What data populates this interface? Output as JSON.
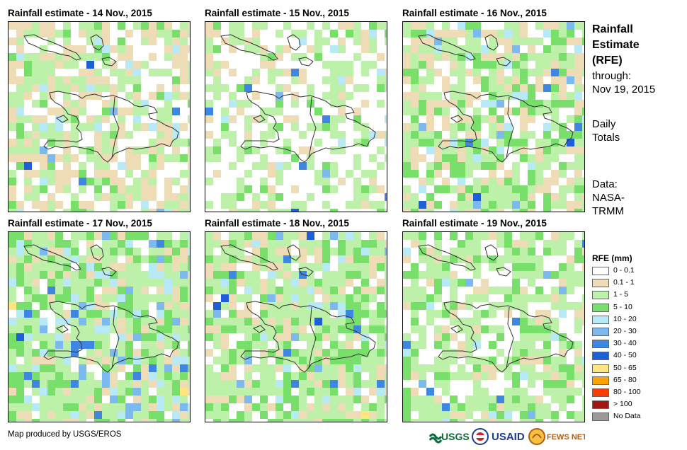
{
  "panels": [
    {
      "title": "Rainfall estimate - 14 Nov., 2015",
      "seed": 14,
      "probs": [
        0.3,
        0.3,
        0.28,
        0.08,
        0.04
      ]
    },
    {
      "title": "Rainfall estimate - 15 Nov., 2015",
      "seed": 15,
      "probs": [
        0.45,
        0.1,
        0.35,
        0.06,
        0.04
      ]
    },
    {
      "title": "Rainfall estimate - 16 Nov., 2015",
      "seed": 16,
      "probs": [
        0.22,
        0.22,
        0.3,
        0.18,
        0.08
      ]
    },
    {
      "title": "Rainfall estimate - 17 Nov., 2015",
      "seed": 17,
      "probs": [
        0.1,
        0.15,
        0.35,
        0.22,
        0.18
      ]
    },
    {
      "title": "Rainfall estimate - 18 Nov., 2015",
      "seed": 18,
      "probs": [
        0.15,
        0.15,
        0.4,
        0.22,
        0.08
      ]
    },
    {
      "title": "Rainfall estimate - 19 Nov., 2015",
      "seed": 19,
      "probs": [
        0.3,
        0.12,
        0.4,
        0.14,
        0.04
      ]
    }
  ],
  "side": {
    "title_line1": "Rainfall",
    "title_line2": "Estimate",
    "title_line3": "(RFE)",
    "through_line1": "through:",
    "through_line2": "Nov 19, 2015",
    "daily_line1": "Daily",
    "daily_line2": "Totals",
    "data_line1": "Data:",
    "data_line2": "NASA-",
    "data_line3": "TRMM"
  },
  "legend": {
    "title": "RFE (mm)",
    "items": [
      {
        "label": "0 - 0.1",
        "color": "#ffffff"
      },
      {
        "label": "0.1 - 1",
        "color": "#eedcb6"
      },
      {
        "label": "1 - 5",
        "color": "#bdf0a8"
      },
      {
        "label": "5 - 10",
        "color": "#78e06a"
      },
      {
        "label": "10 - 20",
        "color": "#b7e9f7"
      },
      {
        "label": "20 - 30",
        "color": "#7cb9ef"
      },
      {
        "label": "30 - 40",
        "color": "#3f86e2"
      },
      {
        "label": "40 - 50",
        "color": "#1d5fd6"
      },
      {
        "label": "50 - 65",
        "color": "#ffe680"
      },
      {
        "label": "65 - 80",
        "color": "#ffa200"
      },
      {
        "label": "80 - 100",
        "color": "#ff3d00"
      },
      {
        "label": "> 100",
        "color": "#a21616"
      },
      {
        "label": "No Data",
        "color": "#9a9a9a"
      }
    ]
  },
  "credit": "Map produced by USGS/EROS",
  "logos": {
    "usgs": "USGS",
    "usaid": "USAID",
    "fewsnet": "FEWS NET"
  }
}
